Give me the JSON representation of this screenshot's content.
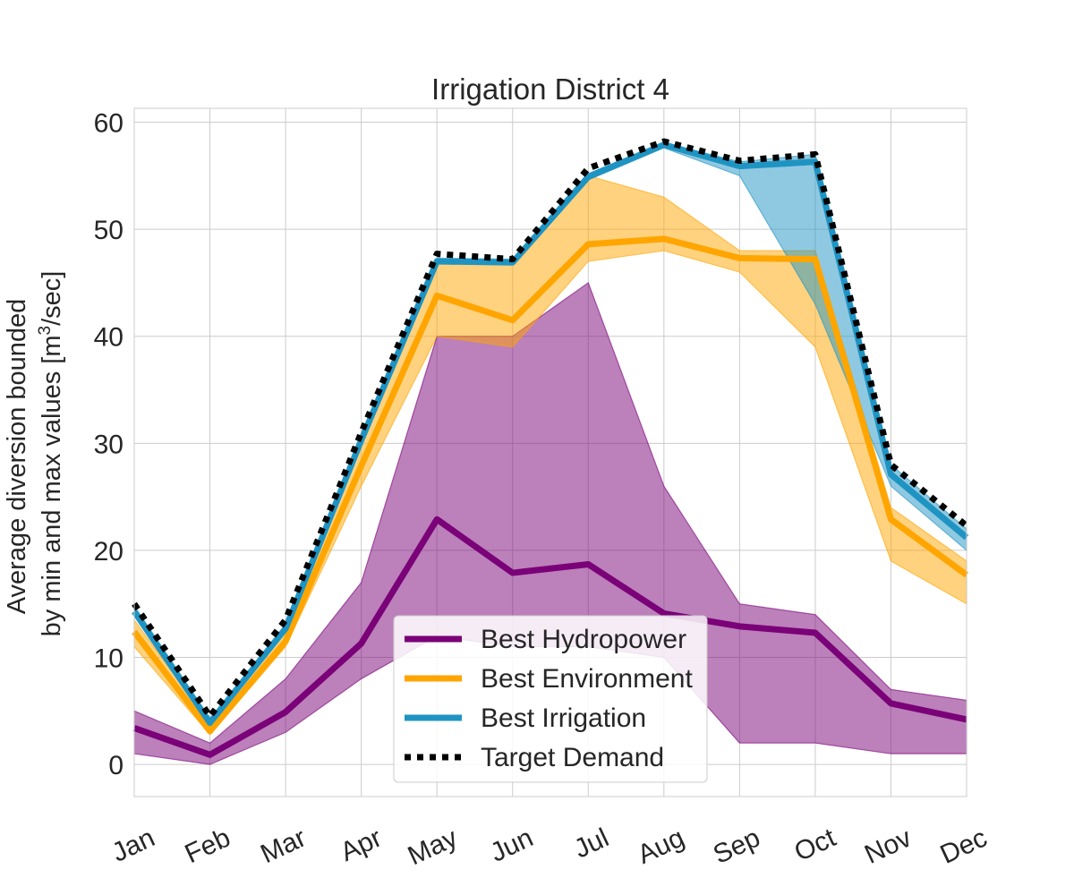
{
  "chart_data": {
    "type": "line",
    "title": "Irrigation District 4",
    "ylabel_line1": "Average diversion bounded",
    "ylabel_line2_pre": "by min and max values [m",
    "ylabel_line2_sup": "3",
    "ylabel_line2_post": "/sec]",
    "xlabel": "",
    "categories": [
      "Jan",
      "Feb",
      "Mar",
      "Apr",
      "May",
      "Jun",
      "Jul",
      "Aug",
      "Sep",
      "Oct",
      "Nov",
      "Dec"
    ],
    "yticks": [
      0,
      10,
      20,
      30,
      40,
      50,
      60
    ],
    "ylim": [
      -3,
      61.3
    ],
    "grid": true,
    "legend_position": "lower-center",
    "series": [
      {
        "name": "Best Hydropower",
        "color": "#7a0177",
        "style": "solid",
        "values": [
          3.4,
          0.9,
          4.9,
          11.3,
          22.9,
          17.9,
          18.7,
          14.1,
          12.9,
          12.3,
          5.7,
          4.2
        ],
        "min": [
          1,
          0,
          3,
          8,
          12,
          11,
          11,
          10,
          2,
          2,
          1,
          1
        ],
        "max": [
          5,
          2,
          8,
          17,
          40,
          40,
          45,
          26,
          15,
          14,
          7,
          6
        ]
      },
      {
        "name": "Best Environment",
        "color": "#ffa500",
        "style": "solid",
        "values": [
          12.4,
          3.1,
          11.5,
          27.9,
          43.8,
          41.5,
          48.6,
          49.1,
          47.3,
          47.2,
          22.9,
          17.7
        ],
        "min": [
          11,
          2.8,
          11,
          26,
          40,
          39,
          47,
          48,
          46,
          39,
          19,
          15
        ],
        "max": [
          13.5,
          3.8,
          12.5,
          30,
          47,
          47,
          55,
          53,
          48,
          48,
          24,
          19
        ]
      },
      {
        "name": "Best Irrigation",
        "color": "#1f94c3",
        "style": "solid",
        "values": [
          14.3,
          3.9,
          12.7,
          30.3,
          47,
          46.9,
          54.9,
          57.9,
          55.9,
          56.3,
          27.1,
          21.2
        ],
        "min": [
          14,
          3.5,
          12.5,
          30,
          46.8,
          46.8,
          54.6,
          57.6,
          55,
          43,
          26,
          20
        ],
        "max": [
          14.8,
          4.3,
          13,
          30.8,
          47.3,
          47.2,
          55.2,
          58.1,
          56.3,
          57,
          28,
          22
        ]
      },
      {
        "name": "Target Demand",
        "color": "#000000",
        "style": "dotted",
        "values": [
          15,
          4.5,
          13.5,
          31,
          47.7,
          47.2,
          55.7,
          58.2,
          56.4,
          57,
          28,
          22.3
        ]
      }
    ]
  }
}
